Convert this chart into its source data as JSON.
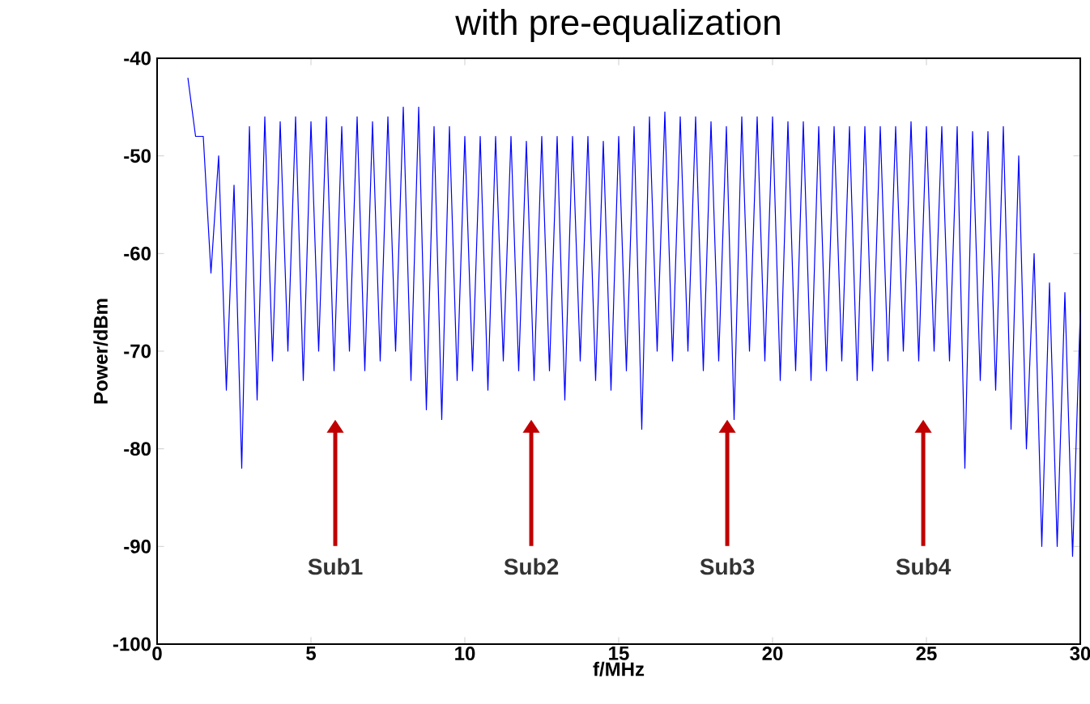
{
  "chart_data": {
    "type": "line",
    "title": "with pre-equalization",
    "xlabel": "f/MHz",
    "ylabel": "Power/dBm",
    "xlim": [
      0,
      30
    ],
    "xticks": [
      0,
      5,
      10,
      15,
      20,
      25,
      30
    ],
    "ylim": [
      -100,
      -40
    ],
    "yticks": [
      -100,
      -90,
      -80,
      -70,
      -60,
      -50,
      -40
    ],
    "marker": "none",
    "line_style": "solid",
    "series": [
      {
        "color": "#0000ff",
        "x": [
          1.0,
          1.25,
          1.5,
          1.75,
          2.0,
          2.25,
          2.5,
          2.75,
          3.0,
          3.25,
          3.5,
          3.75,
          4.0,
          4.25,
          4.5,
          4.75,
          5.0,
          5.25,
          5.5,
          5.75,
          6.0,
          6.25,
          6.5,
          6.75,
          7.0,
          7.25,
          7.5,
          7.75,
          8.0,
          8.25,
          8.5,
          8.75,
          9.0,
          9.25,
          9.5,
          9.75,
          10.0,
          10.25,
          10.5,
          10.75,
          11.0,
          11.25,
          11.5,
          11.75,
          12.0,
          12.25,
          12.5,
          12.75,
          13.0,
          13.25,
          13.5,
          13.75,
          14.0,
          14.25,
          14.5,
          14.75,
          15.0,
          15.25,
          15.5,
          15.75,
          16.0,
          16.25,
          16.5,
          16.75,
          17.0,
          17.25,
          17.5,
          17.75,
          18.0,
          18.25,
          18.5,
          18.75,
          19.0,
          19.25,
          19.5,
          19.75,
          20.0,
          20.25,
          20.5,
          20.75,
          21.0,
          21.25,
          21.5,
          21.75,
          22.0,
          22.25,
          22.5,
          22.75,
          23.0,
          23.25,
          23.5,
          23.75,
          24.0,
          24.25,
          24.5,
          24.75,
          25.0,
          25.25,
          25.5,
          25.75,
          26.0,
          26.25,
          26.5,
          26.75,
          27.0,
          27.25,
          27.5,
          27.75,
          28.0,
          28.25,
          28.5,
          28.75,
          29.0,
          29.25,
          29.5,
          29.75,
          30.0
        ],
        "values": [
          -42,
          -48,
          -48,
          -62,
          -50,
          -74,
          -53,
          -82,
          -47,
          -75,
          -46,
          -71,
          -46.5,
          -70,
          -46,
          -73,
          -46.5,
          -70,
          -46,
          -72,
          -47,
          -70,
          -46,
          -72,
          -46.5,
          -71,
          -46,
          -70,
          -45,
          -73,
          -45,
          -76,
          -47,
          -77,
          -47,
          -73,
          -48,
          -72,
          -48,
          -74,
          -48,
          -71,
          -48,
          -72,
          -48.5,
          -73,
          -48,
          -72,
          -48,
          -75,
          -48,
          -71,
          -48,
          -73,
          -48.5,
          -74,
          -48,
          -72,
          -47,
          -78,
          -46,
          -70,
          -45.5,
          -71,
          -46,
          -70,
          -46,
          -72,
          -46.5,
          -71,
          -47,
          -77,
          -46,
          -70,
          -46,
          -71,
          -46,
          -73,
          -46.5,
          -72,
          -46.5,
          -73,
          -47,
          -72,
          -47,
          -71,
          -47,
          -73,
          -47,
          -72,
          -47,
          -71,
          -47,
          -70,
          -46.5,
          -71,
          -47,
          -70,
          -47,
          -71,
          -47,
          -82,
          -47.5,
          -73,
          -47.5,
          -74,
          -47,
          -78,
          -50,
          -80,
          -60,
          -90,
          -63,
          -90,
          -64,
          -91,
          -66
        ]
      }
    ],
    "annotations": [
      "Sub1",
      "Sub2",
      "Sub3",
      "Sub4"
    ]
  }
}
